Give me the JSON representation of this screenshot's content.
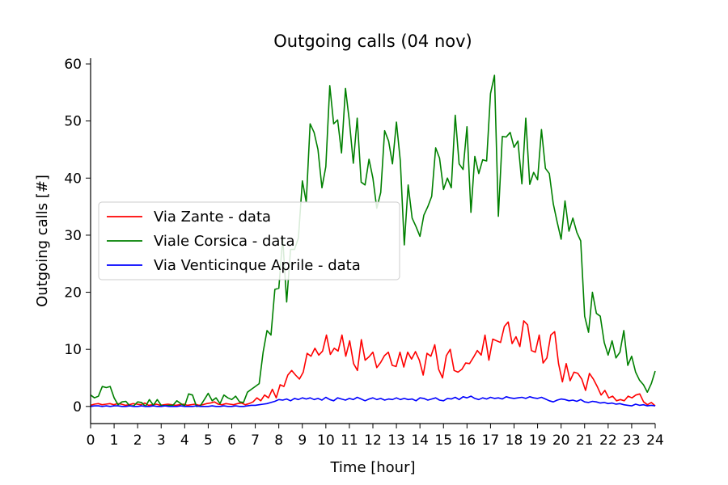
{
  "chart_data": {
    "type": "line",
    "title": "Outgoing calls (04 nov)",
    "xlabel": "Time [hour]",
    "ylabel": "Outgoing calls [#]",
    "xlim": [
      0,
      24
    ],
    "ylim": [
      -3,
      61
    ],
    "xticks": [
      0,
      1,
      2,
      3,
      4,
      5,
      6,
      7,
      8,
      9,
      10,
      11,
      12,
      13,
      14,
      15,
      16,
      17,
      18,
      19,
      20,
      21,
      22,
      23,
      24
    ],
    "yticks": [
      0,
      10,
      20,
      30,
      40,
      50,
      60
    ],
    "grid": false,
    "legend_position": "center-left",
    "x_step_hours": 0.1667,
    "series": [
      {
        "name": "Via Zante - data",
        "color": "#ff0000",
        "values": [
          0.2,
          0.4,
          0.5,
          0.3,
          0.4,
          0.5,
          0.3,
          0.5,
          0.4,
          0.2,
          0.3,
          0.5,
          0.4,
          0.3,
          0.6,
          0.2,
          0.3,
          0.4,
          0.2,
          0.3,
          0.4,
          0.3,
          0.2,
          0.3,
          0.4,
          0.2,
          0.3,
          0.4,
          0.2,
          0.3,
          0.5,
          0.6,
          0.8,
          0.4,
          0.3,
          0.5,
          0.4,
          0.3,
          0.5,
          0.6,
          0.3,
          0.5,
          0.8,
          1.5,
          1.0,
          2.0,
          1.5,
          3.0,
          1.5,
          3.8,
          3.5,
          5.5,
          6.3,
          5.5,
          4.8,
          6.0,
          9.3,
          8.8,
          10.2,
          9.0,
          9.7,
          12.5,
          9.1,
          10.2,
          9.7,
          12.5,
          8.8,
          11.5,
          7.5,
          6.3,
          11.7,
          8.1,
          8.7,
          9.5,
          6.8,
          7.7,
          8.9,
          9.5,
          7.2,
          7.0,
          9.5,
          6.9,
          9.5,
          8.3,
          9.6,
          8.1,
          5.5,
          9.3,
          8.8,
          10.8,
          6.5,
          5.0,
          8.9,
          10.0,
          6.3,
          6.0,
          6.5,
          7.6,
          7.5,
          8.6,
          9.8,
          9.0,
          12.5,
          8.1,
          11.8,
          11.5,
          11.2,
          14.0,
          14.8,
          11.0,
          12.2,
          10.5,
          15.0,
          14.3,
          9.8,
          9.5,
          12.5,
          7.6,
          8.5,
          12.5,
          13.1,
          7.5,
          4.3,
          7.5,
          4.5,
          6.0,
          5.8,
          4.8,
          2.8,
          5.8,
          4.8,
          3.5,
          2.0,
          2.8,
          1.5,
          1.8,
          1.0,
          1.2,
          1.0,
          1.8,
          1.5,
          2.0,
          2.2,
          0.8,
          0.3,
          0.7,
          0.1
        ]
      },
      {
        "name": "Viale Corsica - data",
        "color": "#008000",
        "values": [
          2.0,
          1.5,
          1.8,
          3.5,
          3.3,
          3.5,
          1.5,
          0.3,
          0.8,
          0.9,
          0.1,
          0.1,
          0.8,
          0.7,
          0.0,
          1.2,
          0.2,
          1.2,
          0.2,
          0.1,
          0.2,
          0.2,
          1.0,
          0.5,
          0.1,
          2.2,
          2.0,
          0.0,
          0.1,
          1.2,
          2.3,
          1.0,
          1.5,
          0.5,
          2.0,
          1.5,
          1.2,
          1.8,
          0.8,
          0.7,
          2.5,
          3.0,
          3.5,
          4.0,
          9.5,
          13.3,
          12.5,
          20.5,
          20.7,
          29.5,
          18.3,
          27.5,
          27.5,
          29.5,
          39.5,
          35.8,
          49.5,
          48.0,
          45.0,
          38.3,
          42.0,
          56.2,
          49.5,
          50.2,
          44.4,
          55.7,
          50.0,
          42.6,
          50.5,
          39.3,
          38.8,
          43.3,
          40.0,
          34.7,
          37.5,
          48.3,
          46.5,
          42.5,
          49.8,
          43.0,
          28.3,
          38.8,
          33.0,
          31.5,
          29.8,
          33.5,
          35.0,
          36.8,
          45.3,
          43.5,
          38.0,
          40.0,
          38.3,
          51.0,
          42.5,
          41.5,
          49.0,
          34.0,
          43.8,
          40.8,
          43.2,
          43.0,
          54.8,
          58.0,
          33.3,
          47.3,
          47.2,
          48.0,
          45.4,
          46.5,
          39.0,
          50.5,
          38.9,
          41.0,
          39.7,
          48.5,
          41.7,
          40.8,
          35.5,
          32.3,
          29.3,
          36.0,
          30.7,
          33.0,
          30.5,
          29.0,
          15.8,
          13.0,
          20.0,
          16.3,
          15.8,
          11.2,
          9.0,
          11.5,
          8.5,
          9.5,
          13.3,
          7.2,
          8.8,
          6.0,
          4.6,
          3.8,
          2.5,
          4.0,
          6.2
        ]
      },
      {
        "name": "Via Venticinque Aprile - data",
        "color": "#0000ff",
        "values": [
          0.0,
          0.1,
          0.1,
          0.0,
          0.1,
          0.0,
          0.1,
          0.1,
          0.0,
          0.0,
          0.1,
          0.0,
          0.0,
          0.1,
          0.0,
          0.0,
          0.1,
          0.0,
          0.0,
          0.1,
          0.0,
          0.0,
          0.0,
          0.1,
          0.0,
          0.0,
          0.0,
          0.1,
          0.0,
          0.0,
          0.0,
          0.1,
          0.0,
          0.0,
          0.1,
          0.0,
          0.0,
          0.1,
          0.0,
          0.0,
          0.1,
          0.2,
          0.2,
          0.3,
          0.4,
          0.5,
          0.7,
          0.9,
          1.2,
          1.1,
          1.3,
          1.0,
          1.4,
          1.2,
          1.5,
          1.3,
          1.5,
          1.2,
          1.4,
          1.1,
          1.6,
          1.2,
          1.0,
          1.5,
          1.3,
          1.1,
          1.4,
          1.2,
          1.6,
          1.3,
          1.0,
          1.3,
          1.5,
          1.2,
          1.4,
          1.1,
          1.3,
          1.2,
          1.5,
          1.2,
          1.4,
          1.2,
          1.3,
          1.0,
          1.5,
          1.4,
          1.1,
          1.3,
          1.5,
          1.1,
          1.0,
          1.4,
          1.3,
          1.6,
          1.2,
          1.7,
          1.5,
          1.8,
          1.4,
          1.2,
          1.5,
          1.3,
          1.6,
          1.4,
          1.5,
          1.3,
          1.7,
          1.5,
          1.4,
          1.5,
          1.6,
          1.4,
          1.7,
          1.5,
          1.4,
          1.6,
          1.3,
          1.0,
          0.8,
          1.1,
          1.3,
          1.2,
          1.0,
          1.1,
          0.9,
          1.2,
          0.8,
          0.7,
          0.9,
          0.8,
          0.6,
          0.7,
          0.5,
          0.6,
          0.4,
          0.5,
          0.3,
          0.2,
          0.1,
          0.4,
          0.2,
          0.3,
          0.1,
          0.2,
          0.1
        ]
      }
    ]
  }
}
